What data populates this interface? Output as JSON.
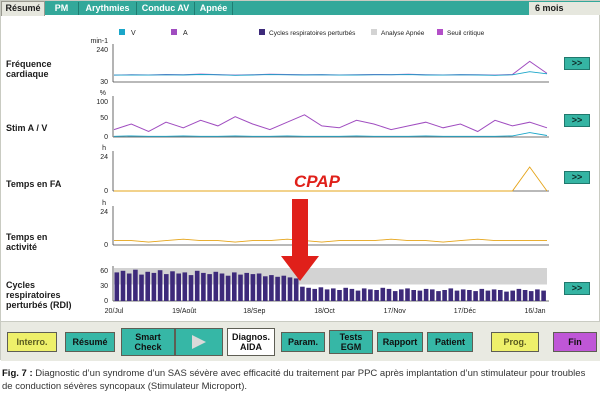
{
  "tabs": [
    {
      "label": "Résumé",
      "active": true
    },
    {
      "label": "PM",
      "active": false
    },
    {
      "label": "Arythmies",
      "active": false
    },
    {
      "label": "Conduc AV",
      "active": false
    },
    {
      "label": "Apnée",
      "active": false
    }
  ],
  "period": "6 mois",
  "legend": {
    "v": "V",
    "a": "A",
    "cycles": "Cycles respiratoires perturbés",
    "apnea": "Analyse Apnée",
    "threshold": "Seuil critique"
  },
  "panels": {
    "hr": {
      "label_line1": "Fréquence",
      "label_line2": "cardiaque",
      "unit": "min-1",
      "tick_top": "240",
      "tick_bottom": "30"
    },
    "stim": {
      "label_line1": "Stim A / V",
      "unit": "%",
      "tick_top": "100",
      "tick_mid": "50",
      "tick_bottom": "0"
    },
    "af": {
      "label_line1": "Temps en FA",
      "unit": "h",
      "tick_top": "24",
      "tick_bottom": "0"
    },
    "activity": {
      "label_line1": "Temps en",
      "label_line2": "activité",
      "unit": "h",
      "tick_top": "24",
      "tick_bottom": "0"
    },
    "rdi": {
      "label_line1": "Cycles",
      "label_line2": "respiratoires",
      "label_line3": "perturbés (RDI)",
      "tick_top": "60",
      "tick_mid": "30",
      "tick_bottom": "0"
    }
  },
  "nav_button": ">>",
  "annotation": "CPAP",
  "x_ticks": [
    "20/Jul",
    "19/Août",
    "18/Sep",
    "18/Oct",
    "17/Nov",
    "17/Déc",
    "16/Jan"
  ],
  "toolbar": {
    "interro": "Interro.",
    "resume": "Résumé",
    "smart_line1": "Smart",
    "smart_line2": "Check",
    "diag_line1": "Diagnos.",
    "diag_line2": "AIDA",
    "param": "Param.",
    "tests_line1": "Tests",
    "tests_line2": "EGM",
    "rapport": "Rapport",
    "patient": "Patient",
    "prog": "Prog.",
    "fin": "Fin"
  },
  "caption": {
    "prefix": "Fig. 7 :",
    "text": "Diagnostic d’un syndrome d’un SAS sévère avec efficacité du traitement par PPC après implantation d’un stimulateur pour troubles de conduction sévères syncopaux (Stimulateur Microport)."
  },
  "colors": {
    "v": "#1aa6c9",
    "a": "#a04dc0",
    "cycles": "#3d2a7a",
    "apnea": "#d3d3d3",
    "threshold": "#b34fc8",
    "activity": "#e5a419",
    "cpap_arrow": "#e0201a"
  },
  "chart_data": [
    {
      "type": "line",
      "title": "Fréquence cardiaque",
      "ylabel": "min-1",
      "ylim": [
        30,
        240
      ],
      "x_ticks": [
        "20/Jul",
        "19/Août",
        "18/Sep",
        "18/Oct",
        "17/Nov",
        "17/Déc",
        "16/Jan"
      ],
      "series": [
        {
          "name": "A",
          "values": [
            70,
            72,
            71,
            74,
            72,
            76,
            73,
            70,
            72,
            75,
            74,
            72,
            73,
            71,
            72,
            74,
            73,
            75,
            72,
            71,
            73,
            72,
            70,
            74,
            150,
            80
          ]
        },
        {
          "name": "V",
          "values": [
            70,
            71,
            70,
            72,
            71,
            74,
            72,
            69,
            71,
            73,
            72,
            71,
            72,
            70,
            71,
            72,
            72,
            73,
            71,
            70,
            72,
            71,
            69,
            72,
            90,
            78
          ]
        }
      ]
    },
    {
      "type": "line",
      "title": "Stim A / V",
      "ylabel": "%",
      "ylim": [
        0,
        100
      ],
      "series": [
        {
          "name": "A",
          "values": [
            20,
            35,
            15,
            40,
            25,
            45,
            30,
            55,
            35,
            20,
            40,
            60,
            30,
            25,
            45,
            35,
            20,
            30,
            40,
            25,
            35,
            15,
            45,
            30,
            40,
            25
          ]
        },
        {
          "name": "V",
          "values": [
            2,
            3,
            2,
            2,
            3,
            2,
            2,
            3,
            2,
            2,
            3,
            2,
            2,
            2,
            3,
            2,
            2,
            2,
            3,
            2,
            2,
            2,
            2,
            3,
            12,
            4
          ]
        }
      ]
    },
    {
      "type": "line",
      "title": "Temps en FA",
      "ylabel": "h",
      "ylim": [
        0,
        24
      ],
      "series": [
        {
          "name": "FA",
          "values": [
            0,
            0,
            0,
            0,
            0,
            0,
            0,
            0,
            0,
            0,
            0,
            0,
            0,
            0,
            0,
            0,
            0,
            0,
            0,
            0,
            0,
            0,
            0,
            0,
            16,
            0
          ]
        }
      ]
    },
    {
      "type": "line",
      "title": "Temps en activité",
      "ylabel": "h",
      "ylim": [
        0,
        24
      ],
      "series": [
        {
          "name": "activité",
          "values": [
            3,
            3,
            2,
            3,
            4,
            3,
            3,
            2,
            3,
            3,
            4,
            3,
            2,
            3,
            3,
            3,
            4,
            3,
            3,
            2,
            3,
            4,
            3,
            3,
            3,
            3
          ]
        }
      ]
    },
    {
      "type": "bar",
      "title": "Cycles respiratoires perturbés (RDI)",
      "ylim": [
        0,
        60
      ],
      "threshold_band": [
        30,
        60
      ],
      "annotation": "CPAP",
      "values": [
        52,
        55,
        50,
        57,
        48,
        53,
        51,
        56,
        49,
        54,
        50,
        52,
        47,
        55,
        51,
        49,
        53,
        50,
        46,
        52,
        48,
        51,
        49,
        50,
        45,
        47,
        44,
        46,
        43,
        41,
        26,
        24,
        22,
        25,
        21,
        23,
        20,
        24,
        22,
        19,
        23,
        21,
        20,
        24,
        22,
        18,
        21,
        23,
        20,
        19,
        22,
        21,
        18,
        20,
        23,
        19,
        21,
        20,
        18,
        22,
        19,
        21,
        20,
        17,
        19,
        22,
        20,
        18,
        21,
        19
      ]
    }
  ]
}
